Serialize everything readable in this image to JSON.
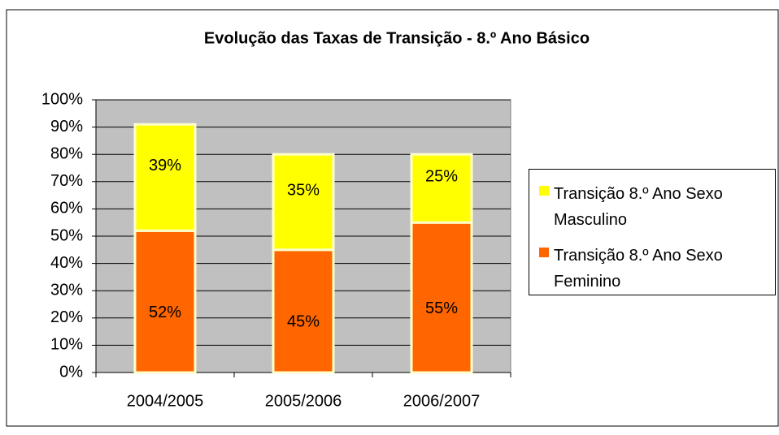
{
  "chart_data": {
    "type": "stacked_bar",
    "title": "Evolução das Taxas de Transição - 8.º Ano Básico",
    "categories": [
      "2004/2005",
      "2005/2006",
      "2006/2007"
    ],
    "series": [
      {
        "name": "Transição 8.º Ano Sexo Feminino",
        "color": "#FF6600",
        "values": [
          52,
          45,
          55
        ],
        "value_labels": [
          "52%",
          "45%",
          "55%"
        ]
      },
      {
        "name": "Transição 8.º Ano Sexo Masculino",
        "color": "#FFFF00",
        "values": [
          39,
          35,
          25
        ],
        "value_labels": [
          "39%",
          "35%",
          "25%"
        ]
      }
    ],
    "ylim": [
      0,
      100
    ],
    "yticks": [
      {
        "value": 0,
        "label": "0%"
      },
      {
        "value": 10,
        "label": "10%"
      },
      {
        "value": 20,
        "label": "20%"
      },
      {
        "value": 30,
        "label": "30%"
      },
      {
        "value": 40,
        "label": "40%"
      },
      {
        "value": 50,
        "label": "50%"
      },
      {
        "value": 60,
        "label": "60%"
      },
      {
        "value": 70,
        "label": "70%"
      },
      {
        "value": 80,
        "label": "80%"
      },
      {
        "value": 90,
        "label": "90%"
      },
      {
        "value": 100,
        "label": "100%"
      }
    ],
    "grid": true
  }
}
